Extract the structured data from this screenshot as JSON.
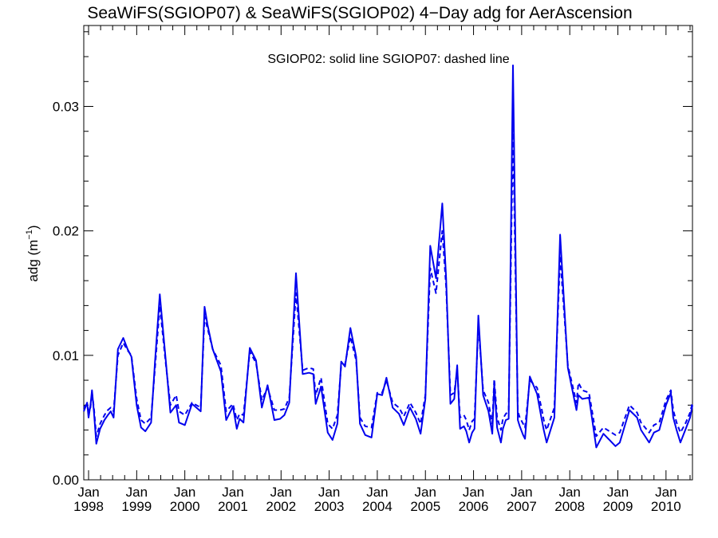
{
  "chart_data": {
    "type": "line",
    "title": "SeaWiFS(SGIOP07) & SeaWiFS(SGIOP02) 4−Day adg for AerAscension",
    "annotation": "SGIOP02: solid line   SGIOP07: dashed line",
    "ylabel_main": "adg (m",
    "ylabel_sup": "−1",
    "ylabel_close": ")",
    "ylim": [
      0.0,
      0.0365
    ],
    "yticks": [
      0.0,
      0.01,
      0.02,
      0.03
    ],
    "ytick_labels": [
      "0.00",
      "0.01",
      "0.02",
      "0.03"
    ],
    "xlim": [
      1997.9,
      2010.55
    ],
    "xticks": [
      1998,
      1999,
      2000,
      2001,
      2002,
      2003,
      2004,
      2005,
      2006,
      2007,
      2008,
      2009,
      2010
    ],
    "xtick_month": "Jan",
    "xtick_years": [
      "1998",
      "1999",
      "2000",
      "2001",
      "2002",
      "2003",
      "2004",
      "2005",
      "2006",
      "2007",
      "2008",
      "2009",
      "2010"
    ],
    "color": "#0000ee",
    "series": [
      {
        "name": "SGIOP02",
        "style": "solid",
        "x": [
          1997.9,
          1997.97,
          1998.0,
          1998.04,
          1998.07,
          1998.11,
          1998.16,
          1998.24,
          1998.33,
          1998.4,
          1998.46,
          1998.52,
          1998.61,
          1998.72,
          1998.81,
          1998.89,
          1999.0,
          1999.09,
          1999.18,
          1999.3,
          1999.38,
          1999.48,
          1999.6,
          1999.7,
          1999.82,
          1999.88,
          2000.0,
          2000.15,
          2000.33,
          2000.41,
          2000.47,
          2000.58,
          2000.75,
          2000.86,
          2001.0,
          2001.08,
          2001.14,
          2001.22,
          2001.35,
          2001.48,
          2001.6,
          2001.72,
          2001.86,
          2001.98,
          2002.07,
          2002.17,
          2002.31,
          2002.45,
          2002.58,
          2002.67,
          2002.72,
          2002.83,
          2002.97,
          2003.07,
          2003.17,
          2003.25,
          2003.33,
          2003.44,
          2003.56,
          2003.64,
          2003.75,
          2003.88,
          2004.0,
          2004.1,
          2004.19,
          2004.32,
          2004.45,
          2004.55,
          2004.68,
          2004.8,
          2004.9,
          2005.0,
          2005.1,
          2005.22,
          2005.35,
          2005.43,
          2005.52,
          2005.6,
          2005.66,
          2005.72,
          2005.8,
          2005.85,
          2005.91,
          2005.97,
          2006.02,
          2006.1,
          2006.2,
          2006.31,
          2006.39,
          2006.43,
          2006.49,
          2006.57,
          2006.61,
          2006.67,
          2006.73,
          2006.82,
          2006.92,
          2006.96,
          2007.03,
          2007.07,
          2007.17,
          2007.32,
          2007.41,
          2007.46,
          2007.52,
          2007.68,
          2007.8,
          2007.96,
          2008.14,
          2008.18,
          2008.26,
          2008.4,
          2008.55,
          2008.7,
          2008.95,
          2009.04,
          2009.24,
          2009.4,
          2009.48,
          2009.65,
          2009.75,
          2009.86,
          2009.93,
          2010.0,
          2010.1,
          2010.15,
          2010.22,
          2010.3,
          2010.4,
          2010.5,
          2010.55
        ],
        "y": [
          0.0055,
          0.0062,
          0.005,
          0.006,
          0.0072,
          0.0055,
          0.0029,
          0.0041,
          0.0048,
          0.0052,
          0.0055,
          0.005,
          0.0105,
          0.0114,
          0.0105,
          0.0099,
          0.006,
          0.0042,
          0.0039,
          0.0046,
          0.0095,
          0.0149,
          0.0098,
          0.0054,
          0.006,
          0.0046,
          0.0044,
          0.0061,
          0.0055,
          0.0139,
          0.0125,
          0.0105,
          0.0087,
          0.0048,
          0.0059,
          0.0041,
          0.0049,
          0.0046,
          0.0106,
          0.0096,
          0.0058,
          0.0076,
          0.0048,
          0.0049,
          0.0052,
          0.0062,
          0.0166,
          0.0085,
          0.0086,
          0.0085,
          0.0061,
          0.0075,
          0.0038,
          0.0032,
          0.0045,
          0.0095,
          0.0091,
          0.0122,
          0.0099,
          0.0045,
          0.0036,
          0.0034,
          0.0069,
          0.0068,
          0.0082,
          0.0058,
          0.0053,
          0.0044,
          0.0058,
          0.0049,
          0.0037,
          0.0065,
          0.0188,
          0.0162,
          0.0222,
          0.0162,
          0.0061,
          0.0065,
          0.0092,
          0.0041,
          0.0043,
          0.0039,
          0.003,
          0.0038,
          0.0041,
          0.0132,
          0.0068,
          0.0055,
          0.0037,
          0.0077,
          0.0042,
          0.003,
          0.0041,
          0.0048,
          0.0049,
          0.0333,
          0.0048,
          0.0043,
          0.0036,
          0.0033,
          0.0083,
          0.0069,
          0.005,
          0.004,
          0.003,
          0.005,
          0.0197,
          0.009,
          0.0056,
          0.0068,
          0.0065,
          0.0066,
          0.0026,
          0.0037,
          0.0027,
          0.003,
          0.0056,
          0.005,
          0.004,
          0.003,
          0.0038,
          0.004,
          0.005,
          0.006,
          0.007,
          0.005,
          0.004,
          0.003,
          0.004,
          0.005,
          0.006
        ]
      },
      {
        "name": "SGIOP07",
        "style": "dashed",
        "x": [
          1997.9,
          1997.97,
          1998.0,
          1998.04,
          1998.07,
          1998.11,
          1998.16,
          1998.24,
          1998.33,
          1998.4,
          1998.46,
          1998.52,
          1998.61,
          1998.72,
          1998.81,
          1998.89,
          1999.0,
          1999.09,
          1999.18,
          1999.3,
          1999.38,
          1999.48,
          1999.6,
          1999.7,
          1999.82,
          1999.88,
          2000.0,
          2000.15,
          2000.33,
          2000.41,
          2000.47,
          2000.58,
          2000.75,
          2000.86,
          2001.0,
          2001.08,
          2001.14,
          2001.22,
          2001.35,
          2001.48,
          2001.6,
          2001.72,
          2001.86,
          2001.98,
          2002.07,
          2002.17,
          2002.31,
          2002.45,
          2002.58,
          2002.67,
          2002.72,
          2002.83,
          2002.97,
          2003.07,
          2003.17,
          2003.25,
          2003.33,
          2003.44,
          2003.56,
          2003.64,
          2003.75,
          2003.88,
          2004.0,
          2004.1,
          2004.19,
          2004.32,
          2004.45,
          2004.55,
          2004.68,
          2004.8,
          2004.9,
          2005.0,
          2005.1,
          2005.22,
          2005.35,
          2005.43,
          2005.52,
          2005.6,
          2005.66,
          2005.72,
          2005.8,
          2005.85,
          2005.91,
          2005.97,
          2006.02,
          2006.1,
          2006.2,
          2006.31,
          2006.39,
          2006.43,
          2006.49,
          2006.57,
          2006.61,
          2006.67,
          2006.73,
          2006.82,
          2006.92,
          2006.96,
          2007.03,
          2007.07,
          2007.17,
          2007.32,
          2007.41,
          2007.46,
          2007.52,
          2007.68,
          2007.8,
          2007.96,
          2008.14,
          2008.18,
          2008.26,
          2008.4,
          2008.55,
          2008.7,
          2008.95,
          2009.04,
          2009.24,
          2009.4,
          2009.48,
          2009.65,
          2009.75,
          2009.86,
          2009.93,
          2010.0,
          2010.1,
          2010.15,
          2010.22,
          2010.3,
          2010.4,
          2010.5,
          2010.55
        ],
        "y": [
          0.0058,
          0.0061,
          0.0055,
          0.0058,
          0.007,
          0.0058,
          0.0035,
          0.0045,
          0.0052,
          0.0056,
          0.0058,
          0.0055,
          0.01,
          0.011,
          0.0104,
          0.01,
          0.0065,
          0.0048,
          0.0045,
          0.005,
          0.009,
          0.014,
          0.0095,
          0.006,
          0.0068,
          0.0055,
          0.0052,
          0.0062,
          0.0058,
          0.0131,
          0.0122,
          0.0105,
          0.0092,
          0.0055,
          0.0061,
          0.0048,
          0.0053,
          0.0052,
          0.0103,
          0.0094,
          0.0064,
          0.0074,
          0.0056,
          0.0056,
          0.0057,
          0.0066,
          0.015,
          0.0088,
          0.009,
          0.0089,
          0.0068,
          0.0082,
          0.0045,
          0.0041,
          0.0052,
          0.0092,
          0.0093,
          0.0115,
          0.0096,
          0.005,
          0.0043,
          0.0042,
          0.007,
          0.007,
          0.008,
          0.0062,
          0.0058,
          0.0051,
          0.0062,
          0.0054,
          0.0045,
          0.0068,
          0.017,
          0.015,
          0.02,
          0.0155,
          0.0068,
          0.007,
          0.0088,
          0.005,
          0.0052,
          0.0048,
          0.004,
          0.0047,
          0.0049,
          0.0125,
          0.0072,
          0.0062,
          0.0045,
          0.0081,
          0.005,
          0.004,
          0.0049,
          0.0053,
          0.0055,
          0.0282,
          0.0055,
          0.005,
          0.0045,
          0.0042,
          0.008,
          0.0074,
          0.0058,
          0.0048,
          0.004,
          0.0058,
          0.018,
          0.0092,
          0.0062,
          0.0078,
          0.0072,
          0.007,
          0.0035,
          0.0042,
          0.0036,
          0.0038,
          0.006,
          0.0054,
          0.0046,
          0.0038,
          0.0044,
          0.0046,
          0.0055,
          0.0064,
          0.0072,
          0.0056,
          0.0046,
          0.0038,
          0.0045,
          0.0054,
          0.0062
        ]
      }
    ]
  }
}
